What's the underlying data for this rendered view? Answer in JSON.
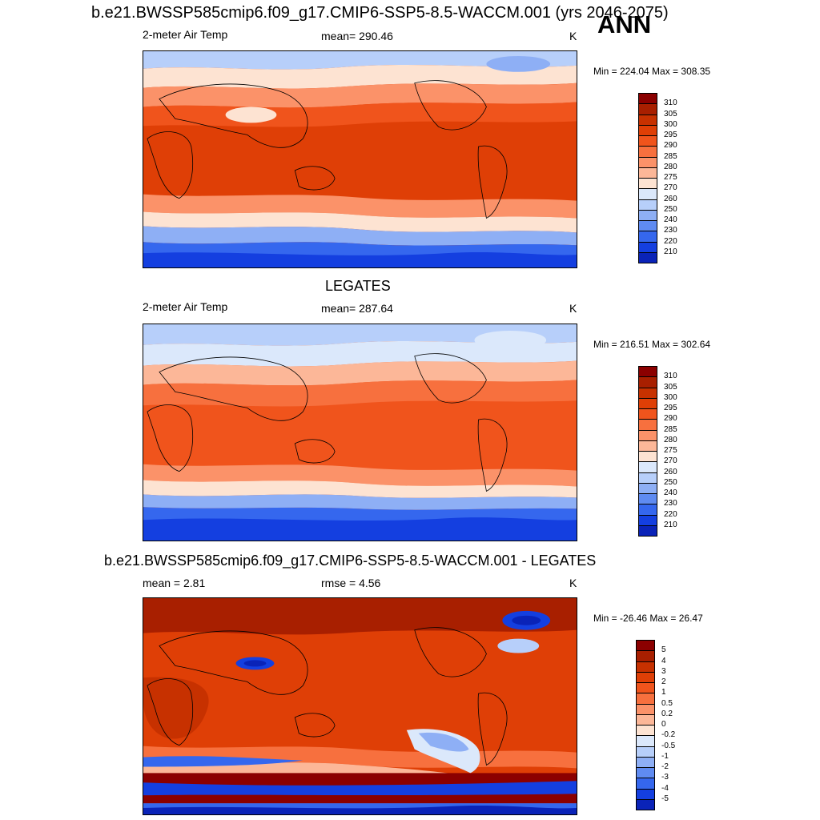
{
  "header": {
    "top_title": "b.e21.BWSSP585cmip6.f09_g17.CMIP6-SSP5-8.5-WACCM.001 (yrs 2046-2075)",
    "season": "ANN"
  },
  "panel1": {
    "left": "2-meter Air Temp",
    "center": "mean= 290.46",
    "units": "K",
    "minmax": "Min = 224.04 Max = 308.35"
  },
  "panel2": {
    "title": "LEGATES",
    "left": "2-meter Air Temp",
    "center": "mean= 287.64",
    "units": "K",
    "minmax": "Min = 216.51 Max = 302.64"
  },
  "panel3": {
    "title": "b.e21.BWSSP585cmip6.f09_g17.CMIP6-SSP5-8.5-WACCM.001 - LEGATES",
    "left": "mean =   2.81",
    "center": "rmse =   4.56",
    "units": "K",
    "minmax": "Min = -26.46 Max =  26.47"
  },
  "colorbar_temp": {
    "labels": [
      "310",
      "305",
      "300",
      "295",
      "290",
      "285",
      "280",
      "275",
      "270",
      "260",
      "250",
      "240",
      "230",
      "220",
      "210"
    ],
    "colors": [
      "#8b0000",
      "#a81f00",
      "#c73100",
      "#df3f06",
      "#f0541c",
      "#f7703e",
      "#fb9269",
      "#fcb798",
      "#fde3d2",
      "#dbe8fb",
      "#b7cffa",
      "#8eaff5",
      "#5f8bf1",
      "#3567ee",
      "#143fe0",
      "#0a23b8"
    ]
  },
  "colorbar_diff": {
    "labels": [
      "5",
      "4",
      "3",
      "2",
      "1",
      "0.5",
      "0.2",
      "0",
      "-0.2",
      "-0.5",
      "-1",
      "-2",
      "-3",
      "-4",
      "-5"
    ],
    "colors": [
      "#8b0000",
      "#a81f00",
      "#c73100",
      "#df3f06",
      "#f0541c",
      "#f7703e",
      "#fb9269",
      "#fcb798",
      "#fde3d2",
      "#dbe8fb",
      "#b7cffa",
      "#8eaff5",
      "#5f8bf1",
      "#3567ee",
      "#143fe0",
      "#0a23b8"
    ]
  }
}
